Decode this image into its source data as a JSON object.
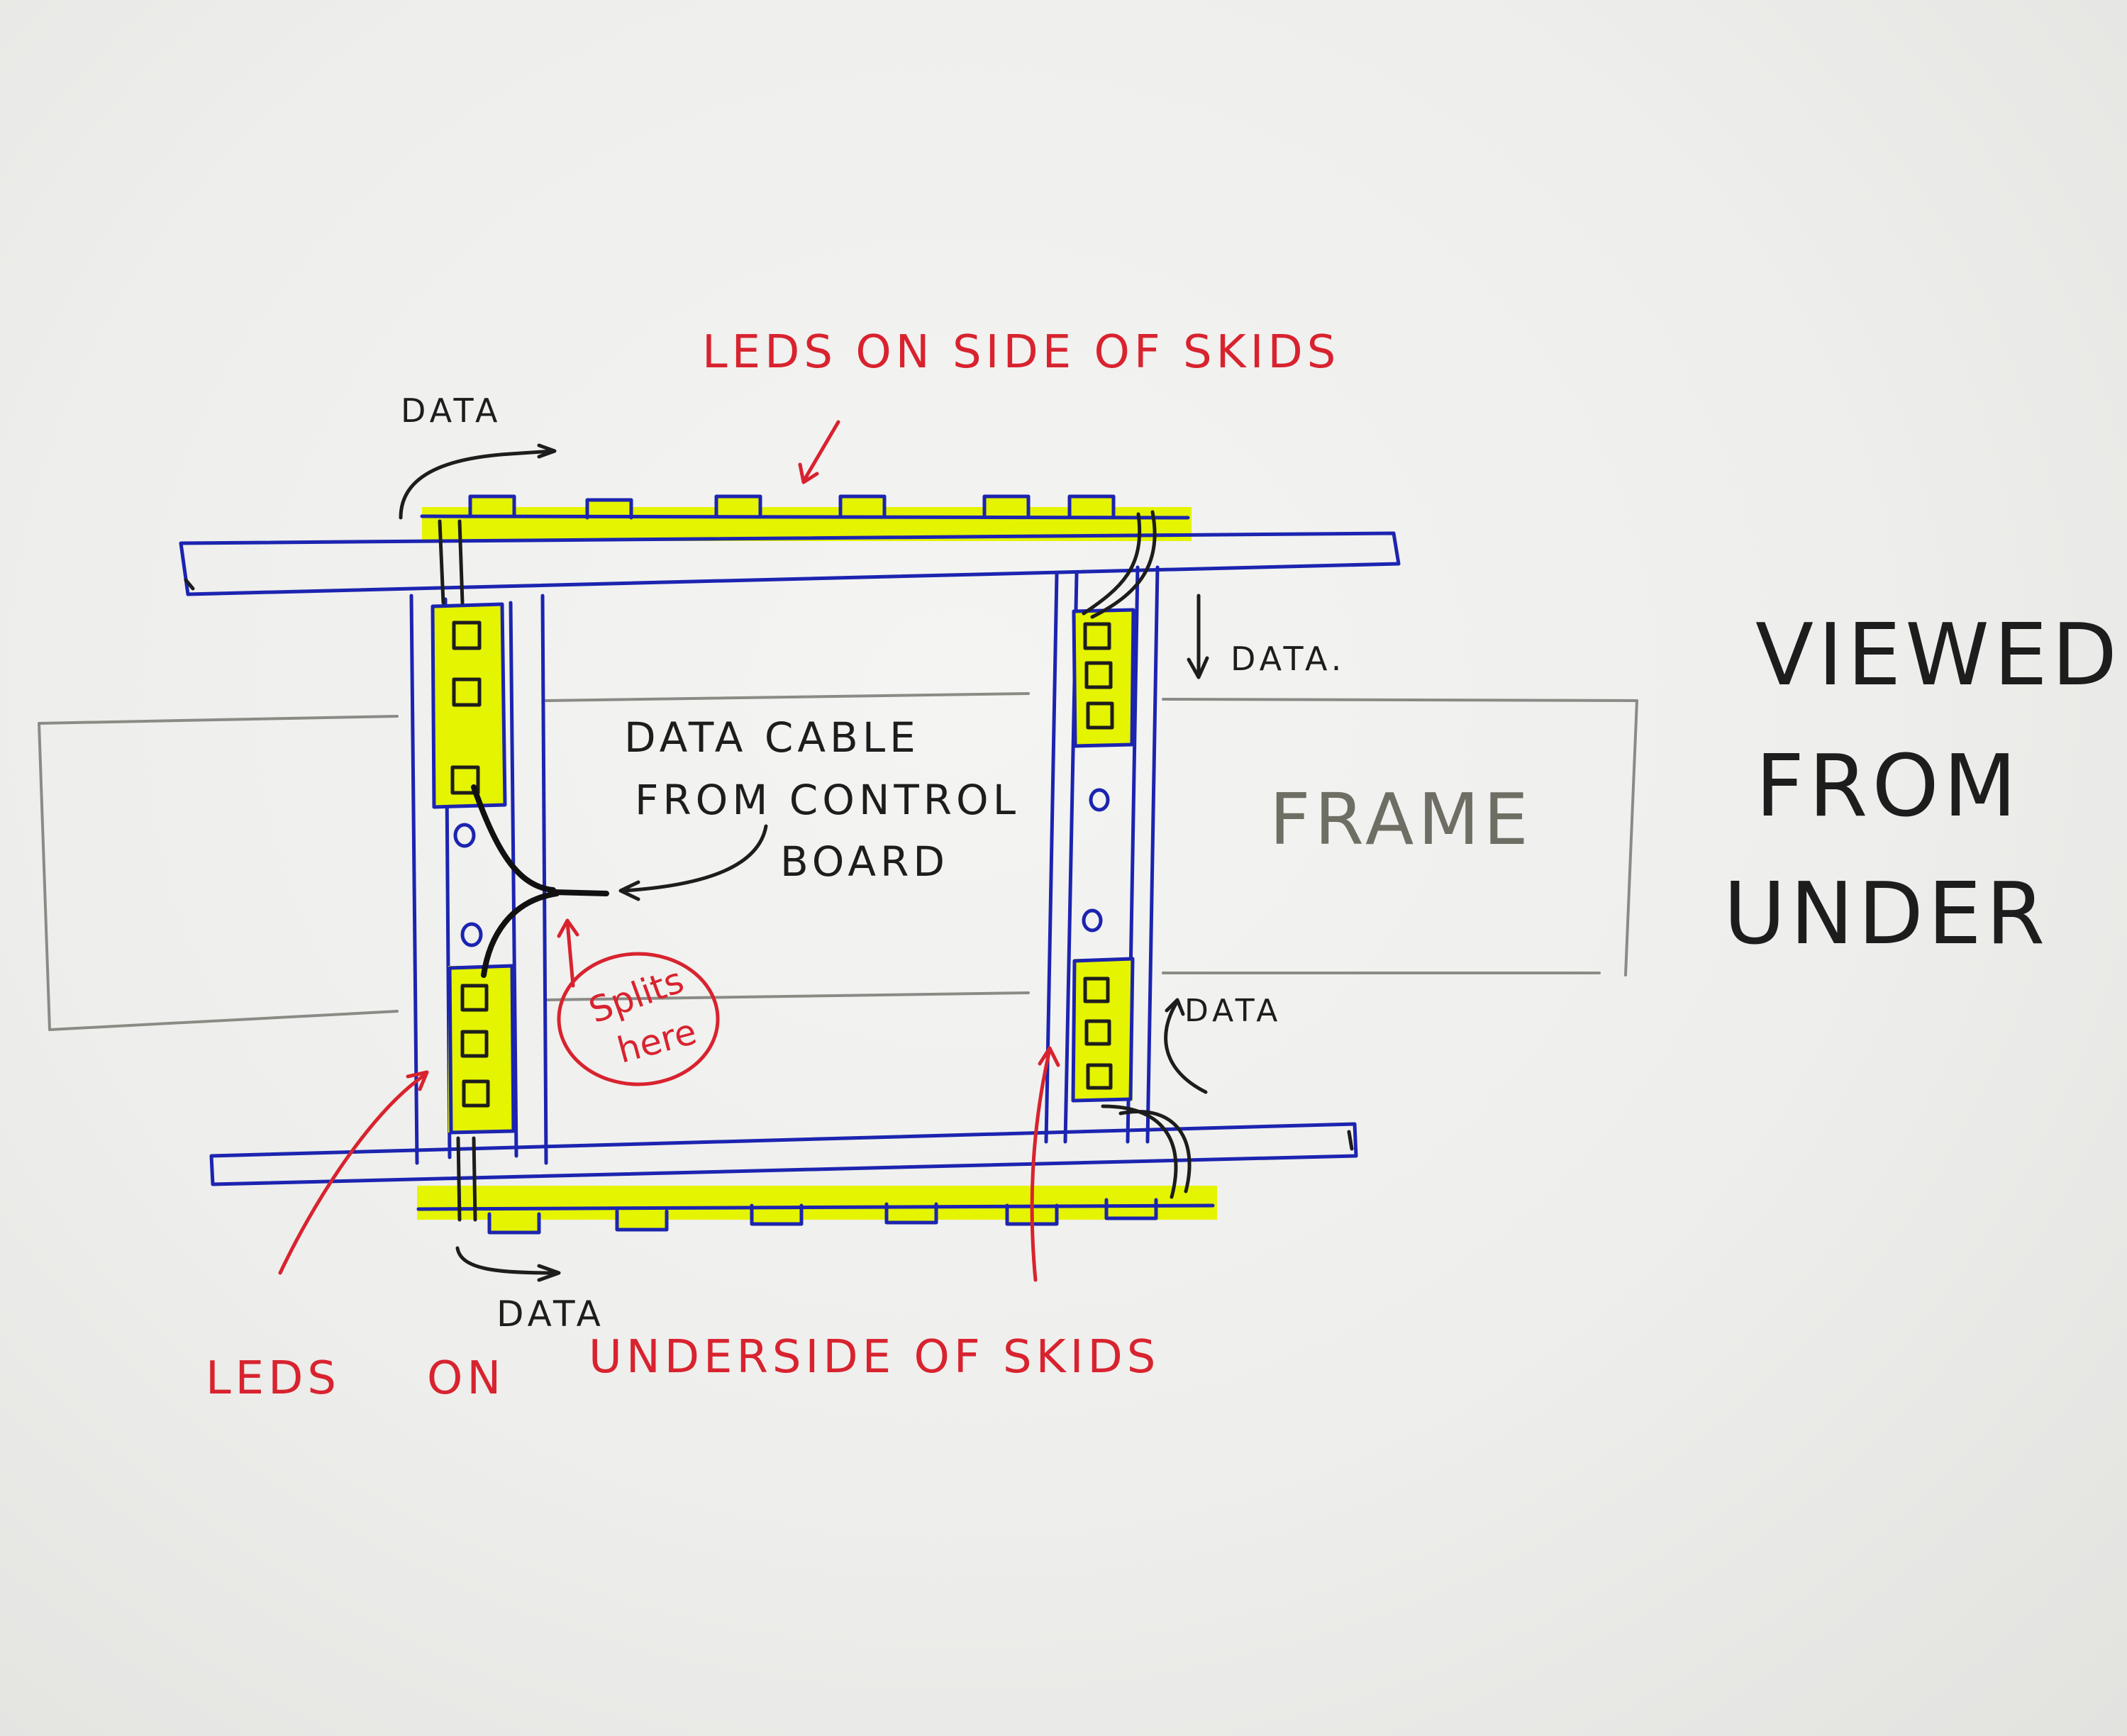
{
  "colors": {
    "skid_outline": "#1c24b0",
    "led_highlight": "#e5f400",
    "annotation_red": "#d8232f",
    "ink_black": "#1d1d1d",
    "frame_grey": "#8b8b86"
  },
  "labels": {
    "leds_side": "LEDS ON SIDE OF SKIDS",
    "data_top_left": "DATA",
    "data_right_top": "DATA.",
    "data_right_bottom": "DATA",
    "data_bottom": "DATA",
    "cable_line1": "DATA CABLE",
    "cable_line2": "FROM CONTROL",
    "cable_line3": "BOARD",
    "splits_line1": "Splits",
    "splits_line2": "here",
    "frame": "FRAME",
    "viewed_line1": "VIEWED",
    "viewed_line2": "FROM",
    "viewed_line3": "UNDER",
    "leds_under_1": "LEDS",
    "leds_under_2": "ON",
    "leds_under_3": "UNDERSIDE OF SKIDS"
  }
}
